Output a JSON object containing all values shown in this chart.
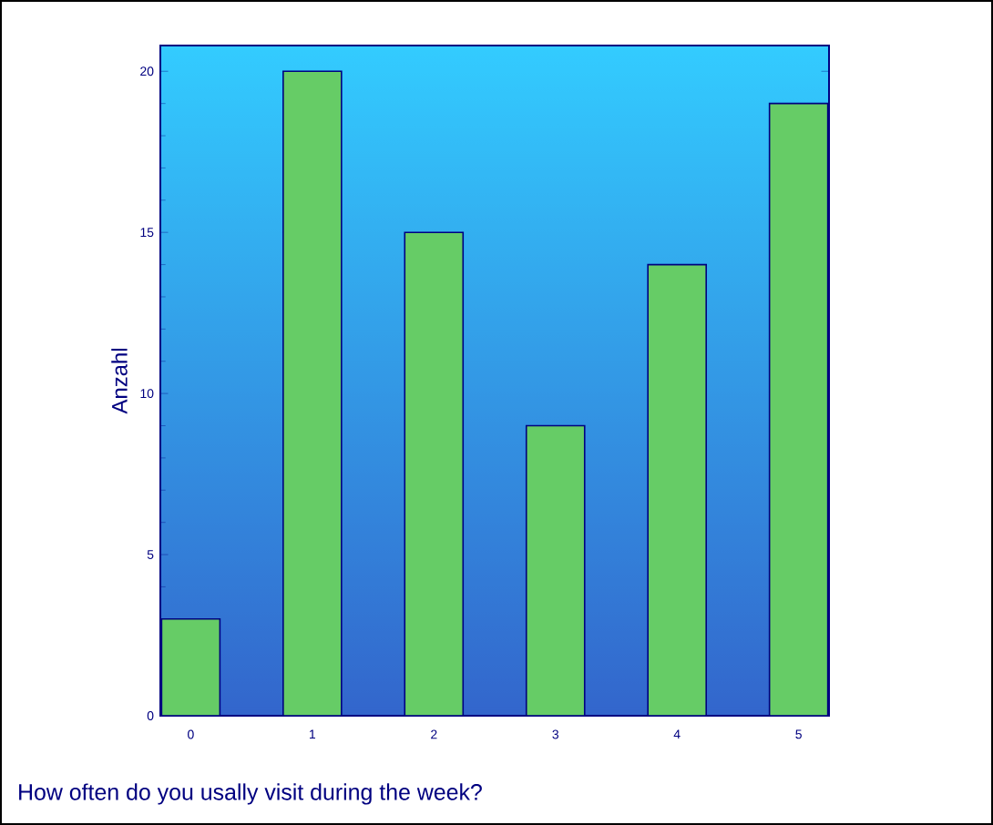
{
  "chart_data": {
    "type": "bar",
    "title": "How often do you usally visit during the week?",
    "ylabel": "Anzahl",
    "categories": [
      "0",
      "1",
      "2",
      "3",
      "4",
      "5"
    ],
    "values": [
      3,
      20,
      15,
      9,
      14,
      19
    ],
    "color": "#66cc66",
    "ylim": [
      0,
      20.8
    ],
    "yticks": [
      0,
      5,
      10,
      15,
      20
    ]
  }
}
